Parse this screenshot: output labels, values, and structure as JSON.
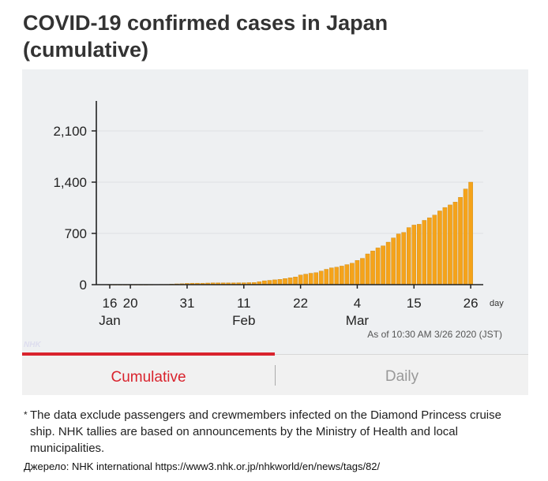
{
  "title": "COVID-19 confirmed cases in Japan (cumulative)",
  "watermark": "NHK",
  "tabs": {
    "cumulative": "Cumulative",
    "daily": "Daily"
  },
  "footnote": {
    "marker": "*",
    "text": "The data exclude passengers and crewmembers infected on the Diamond Princess cruise ship. NHK tallies are based on announcements by the Ministry of Health and local municipalities."
  },
  "source": "Джерело: NHK international https://www3.nhk.or.jp/nhkworld/en/news/tags/82/",
  "colors": {
    "bar": "#f5a31a",
    "accent": "#d9232d"
  },
  "chart_data": {
    "type": "bar",
    "title": "COVID-19 confirmed cases in Japan (cumulative)",
    "xlabel": "day",
    "ylabel": "",
    "ylim": [
      0,
      2450
    ],
    "yticks": [
      0,
      700,
      1400,
      2100
    ],
    "ytick_labels": [
      "0",
      "700",
      "1,400",
      "2,100"
    ],
    "start_date": "2020-01-16",
    "xticks": [
      {
        "day": 0,
        "label": "16",
        "month": "Jan"
      },
      {
        "day": 4,
        "label": "20",
        "month": ""
      },
      {
        "day": 15,
        "label": "31",
        "month": ""
      },
      {
        "day": 26,
        "label": "11",
        "month": "Feb"
      },
      {
        "day": 37,
        "label": "22",
        "month": ""
      },
      {
        "day": 48,
        "label": "4",
        "month": "Mar"
      },
      {
        "day": 59,
        "label": "15",
        "month": ""
      },
      {
        "day": 70,
        "label": "26",
        "month": ""
      }
    ],
    "annotation": "As of 10:30 AM 3/26 2020 (JST)",
    "values": [
      1,
      1,
      1,
      1,
      1,
      1,
      1,
      1,
      2,
      3,
      4,
      4,
      7,
      11,
      14,
      17,
      20,
      20,
      20,
      22,
      25,
      25,
      25,
      25,
      25,
      26,
      26,
      28,
      29,
      41,
      53,
      59,
      66,
      73,
      84,
      94,
      105,
      132,
      144,
      156,
      164,
      186,
      210,
      230,
      239,
      254,
      274,
      293,
      331,
      360,
      420,
      461,
      502,
      530,
      581,
      639,
      693,
      714,
      780,
      814,
      825,
      878,
      914,
      950,
      1007,
      1054,
      1089,
      1128,
      1193,
      1307,
      1400
    ]
  }
}
